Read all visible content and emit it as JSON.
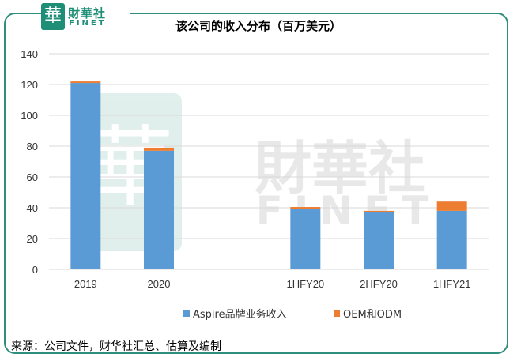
{
  "logo": {
    "seal_char": "華",
    "name_cn": "財華社",
    "name_en": "FINET"
  },
  "watermark": {
    "name_cn": "財華社",
    "name_en": "FINET",
    "seal_char": "華"
  },
  "colors": {
    "series1": "#5b9bd5",
    "series2": "#ed7d31",
    "frame": "#2f8f7c",
    "grid": "#d9d9d9"
  },
  "chart_data": {
    "type": "bar",
    "stacked": true,
    "title": "该公司的收入分布（百万美元）",
    "categories": [
      "2019",
      "2020",
      "",
      "1HFY20",
      "2HFY20",
      "1HFY21"
    ],
    "series": [
      {
        "name": "Aspire品牌业务收入",
        "values": [
          121,
          77,
          null,
          39,
          37,
          38
        ]
      },
      {
        "name": "OEM和ODM",
        "values": [
          1,
          2,
          null,
          1.5,
          1,
          6
        ]
      }
    ],
    "ylim": [
      0,
      140
    ],
    "yticks": [
      0,
      20,
      40,
      60,
      80,
      100,
      120,
      140
    ],
    "grid": true,
    "legend_position": "bottom"
  },
  "source_note": "来源：公司文件，财华社汇总、估算及编制"
}
